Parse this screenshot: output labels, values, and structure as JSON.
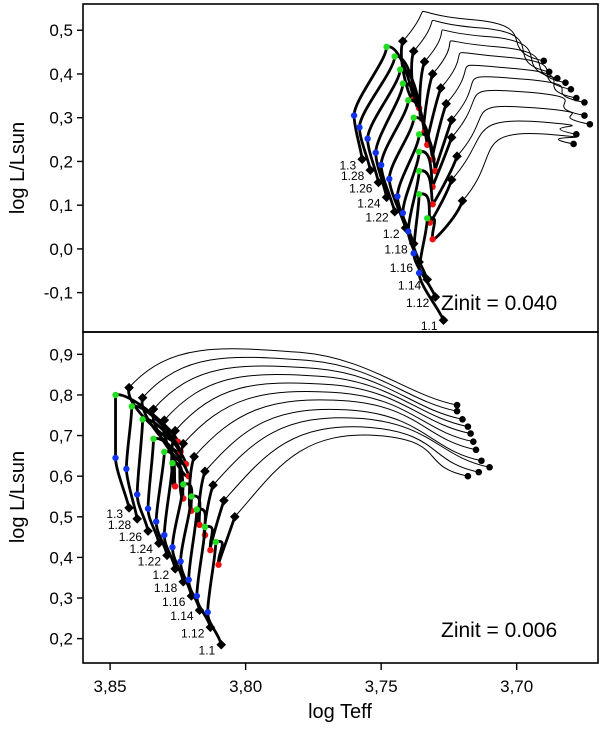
{
  "chart_data": {
    "type": "line",
    "xlabel": "log Teff",
    "ylabel": "log L/Lsun",
    "x_reversed": true,
    "xlim": [
      3.86,
      3.67
    ],
    "xticks": [
      "3,85",
      "3,80",
      "3,75",
      "3,70"
    ],
    "xtick_values": [
      3.85,
      3.8,
      3.75,
      3.7
    ],
    "marker_colors": {
      "green": "#22dd22",
      "red": "#ee1111",
      "blue": "#1133ee",
      "black": "#000000"
    },
    "panels": [
      {
        "id": "top",
        "annotation": "Zinit = 0.040",
        "ylim": [
          -0.19,
          0.56
        ],
        "yticks": [
          "0,5",
          "0,4",
          "0,3",
          "0,2",
          "0,1",
          "0,0",
          "-0,1"
        ],
        "ytick_values": [
          0.5,
          0.4,
          0.3,
          0.2,
          0.1,
          0.0,
          -0.1
        ],
        "tracks": [
          {
            "mass": "1.3",
            "zams": [
              3.757,
              0.205
            ],
            "blue": [
              3.76,
              0.305
            ],
            "green": [
              3.748,
              0.462
            ],
            "red": [
              3.738,
              0.342
            ],
            "tams": [
              3.742,
              0.475
            ],
            "peak": [
              3.716,
              0.524
            ],
            "rgb": [
              3.69,
              0.43
            ]
          },
          {
            "mass": "1.28",
            "zams": [
              3.754,
              0.18
            ],
            "blue": [
              3.758,
              0.278
            ],
            "green": [
              3.745,
              0.44
            ],
            "red": [
              3.736,
              0.322
            ],
            "tams": [
              3.738,
              0.452
            ],
            "peak": [
              3.713,
              0.505
            ],
            "rgb": [
              3.688,
              0.405
            ]
          },
          {
            "mass": "1.26",
            "zams": [
              3.751,
              0.152
            ],
            "blue": [
              3.755,
              0.252
            ],
            "green": [
              3.743,
              0.41
            ],
            "red": [
              3.735,
              0.298
            ],
            "tams": [
              3.734,
              0.428
            ],
            "peak": [
              3.71,
              0.485
            ],
            "rgb": [
              3.685,
              0.39
            ]
          },
          {
            "mass": "1.24",
            "zams": [
              3.748,
              0.118
            ],
            "blue": [
              3.752,
              0.22
            ],
            "green": [
              3.742,
              0.378
            ],
            "red": [
              3.734,
              0.268
            ],
            "tams": [
              3.731,
              0.4
            ],
            "peak": [
              3.707,
              0.462
            ],
            "rgb": [
              3.682,
              0.38
            ]
          },
          {
            "mass": "1.22",
            "zams": [
              3.745,
              0.085
            ],
            "blue": [
              3.75,
              0.192
            ],
            "green": [
              3.74,
              0.34
            ],
            "red": [
              3.733,
              0.238
            ],
            "tams": [
              3.728,
              0.368
            ],
            "peak": [
              3.703,
              0.438
            ],
            "rgb": [
              3.68,
              0.365
            ]
          },
          {
            "mass": "1.2",
            "zams": [
              3.741,
              0.048
            ],
            "blue": [
              3.747,
              0.16
            ],
            "green": [
              3.738,
              0.3
            ],
            "red": [
              3.731,
              0.205
            ],
            "tams": [
              3.726,
              0.332
            ],
            "peak": [
              3.7,
              0.412
            ],
            "rgb": [
              3.678,
              0.345
            ]
          },
          {
            "mass": "1.18",
            "zams": [
              3.738,
              0.012
            ],
            "blue": [
              3.744,
              0.12
            ],
            "green": [
              3.736,
              0.262
            ],
            "red": [
              3.73,
              0.178
            ],
            "tams": [
              3.724,
              0.295
            ],
            "peak": [
              3.697,
              0.388
            ],
            "rgb": [
              3.675,
              0.335
            ]
          },
          {
            "mass": "1.16",
            "zams": [
              3.736,
              -0.03
            ],
            "blue": [
              3.742,
              0.082
            ],
            "green": [
              3.736,
              0.222
            ],
            "red": [
              3.731,
              0.142
            ],
            "tams": [
              3.724,
              0.255
            ],
            "peak": [
              3.695,
              0.358
            ],
            "rgb": [
              3.675,
              0.305
            ]
          },
          {
            "mass": "1.14",
            "zams": [
              3.733,
              -0.07
            ],
            "blue": [
              3.74,
              0.04
            ],
            "green": [
              3.736,
              0.178
            ],
            "red": [
              3.731,
              0.102
            ],
            "tams": [
              3.722,
              0.212
            ],
            "peak": [
              3.692,
              0.322
            ],
            "rgb": [
              3.673,
              0.285
            ]
          },
          {
            "mass": "1.12",
            "zams": [
              3.73,
              -0.11
            ],
            "blue": [
              3.738,
              -0.01
            ],
            "green": [
              3.736,
              0.125
            ],
            "red": [
              3.732,
              0.06
            ],
            "tams": [
              3.724,
              0.158
            ],
            "peak": [
              3.69,
              0.29
            ],
            "rgb": [
              3.678,
              0.262
            ]
          },
          {
            "mass": "1.1",
            "zams": [
              3.727,
              -0.163
            ],
            "blue": [
              3.736,
              -0.055
            ],
            "green": [
              3.733,
              0.07
            ],
            "red": [
              3.731,
              0.022
            ],
            "tams": [
              3.72,
              0.11
            ],
            "peak": [
              3.688,
              0.262
            ],
            "rgb": [
              3.679,
              0.24
            ]
          }
        ]
      },
      {
        "id": "bottom",
        "annotation": "Zinit = 0.006",
        "ylim": [
          0.14,
          0.955
        ],
        "yticks": [
          "0,9",
          "0,8",
          "0,7",
          "0,6",
          "0,5",
          "0,4",
          "0,3",
          "0,2"
        ],
        "ytick_values": [
          0.9,
          0.8,
          0.7,
          0.6,
          0.5,
          0.4,
          0.3,
          0.2
        ],
        "tracks": [
          {
            "mass": "1.3",
            "zams": [
              3.843,
              0.522
            ],
            "blue": [
              3.848,
              0.645
            ],
            "green": [
              3.848,
              0.8
            ],
            "red": [
              3.825,
              0.685
            ],
            "tams": [
              3.843,
              0.818
            ],
            "peak": [
              3.78,
              0.905
            ],
            "rgb": [
              3.722,
              0.775
            ]
          },
          {
            "mass": "1.28",
            "zams": [
              3.84,
              0.495
            ],
            "blue": [
              3.844,
              0.618
            ],
            "green": [
              3.842,
              0.772
            ],
            "red": [
              3.824,
              0.66
            ],
            "tams": [
              3.838,
              0.793
            ],
            "peak": [
              3.777,
              0.885
            ],
            "rgb": [
              3.722,
              0.76
            ]
          },
          {
            "mass": "1.26",
            "zams": [
              3.836,
              0.465
            ],
            "blue": [
              3.84,
              0.555
            ],
            "green": [
              3.838,
              0.74
            ],
            "red": [
              3.822,
              0.63
            ],
            "tams": [
              3.834,
              0.765
            ],
            "peak": [
              3.774,
              0.865
            ],
            "rgb": [
              3.72,
              0.74
            ]
          },
          {
            "mass": "1.24",
            "zams": [
              3.832,
              0.435
            ],
            "blue": [
              3.836,
              0.52
            ],
            "green": [
              3.834,
              0.692
            ],
            "red": [
              3.821,
              0.6
            ],
            "tams": [
              3.83,
              0.738
            ],
            "peak": [
              3.771,
              0.845
            ],
            "rgb": [
              3.718,
              0.722
            ]
          },
          {
            "mass": "1.22",
            "zams": [
              3.829,
              0.405
            ],
            "blue": [
              3.833,
              0.488
            ],
            "green": [
              3.83,
              0.66
            ],
            "red": [
              3.826,
              0.575
            ],
            "tams": [
              3.826,
              0.712
            ],
            "peak": [
              3.768,
              0.825
            ],
            "rgb": [
              3.717,
              0.705
            ]
          },
          {
            "mass": "1.2",
            "zams": [
              3.826,
              0.372
            ],
            "blue": [
              3.83,
              0.455
            ],
            "green": [
              3.827,
              0.632
            ],
            "red": [
              3.823,
              0.545
            ],
            "tams": [
              3.823,
              0.68
            ],
            "peak": [
              3.765,
              0.805
            ],
            "rgb": [
              3.716,
              0.685
            ]
          },
          {
            "mass": "1.18",
            "zams": [
              3.823,
              0.34
            ],
            "blue": [
              3.827,
              0.425
            ],
            "green": [
              3.823,
              0.58
            ],
            "red": [
              3.82,
              0.515
            ],
            "tams": [
              3.819,
              0.648
            ],
            "peak": [
              3.762,
              0.785
            ],
            "rgb": [
              3.715,
              0.665
            ]
          },
          {
            "mass": "1.16",
            "zams": [
              3.82,
              0.305
            ],
            "blue": [
              3.824,
              0.39
            ],
            "green": [
              3.82,
              0.55
            ],
            "red": [
              3.817,
              0.48
            ],
            "tams": [
              3.815,
              0.612
            ],
            "peak": [
              3.76,
              0.762
            ],
            "rgb": [
              3.713,
              0.638
            ]
          },
          {
            "mass": "1.14",
            "zams": [
              3.817,
              0.27
            ],
            "blue": [
              3.821,
              0.345
            ],
            "green": [
              3.818,
              0.518
            ],
            "red": [
              3.815,
              0.455
            ],
            "tams": [
              3.812,
              0.578
            ],
            "peak": [
              3.757,
              0.742
            ],
            "rgb": [
              3.71,
              0.622
            ]
          },
          {
            "mass": "1.12",
            "zams": [
              3.813,
              0.228
            ],
            "blue": [
              3.818,
              0.305
            ],
            "green": [
              3.815,
              0.475
            ],
            "red": [
              3.813,
              0.418
            ],
            "tams": [
              3.808,
              0.54
            ],
            "peak": [
              3.754,
              0.72
            ],
            "rgb": [
              3.714,
              0.61
            ]
          },
          {
            "mass": "1.1",
            "zams": [
              3.809,
              0.185
            ],
            "blue": [
              3.814,
              0.265
            ],
            "green": [
              3.811,
              0.438
            ],
            "red": [
              3.81,
              0.382
            ],
            "tams": [
              3.804,
              0.5
            ],
            "peak": [
              3.751,
              0.7
            ],
            "rgb": [
              3.718,
              0.6
            ]
          }
        ]
      }
    ]
  }
}
